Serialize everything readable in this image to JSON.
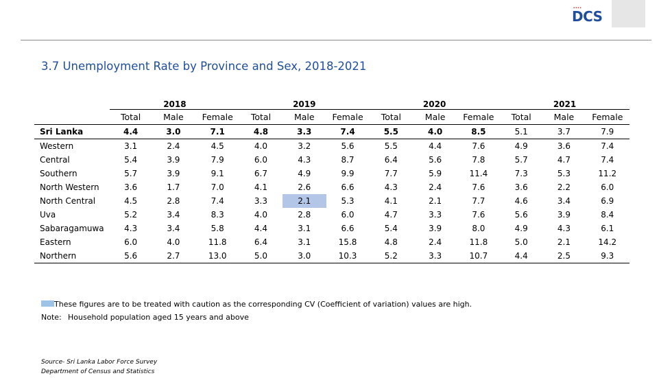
{
  "logo": {
    "text": "DCS",
    "dots": "▪▪▪▪"
  },
  "title": "3.7  Unemployment Rate by Province and Sex, 2018-2021",
  "table": {
    "years": [
      "2018",
      "2019",
      "2020",
      "2021"
    ],
    "subheaders": [
      "Total",
      "Male",
      "Female",
      "Total",
      "Male",
      "Female",
      "Total",
      "Male",
      "Female",
      "Total",
      "Male",
      "Female"
    ],
    "rows": [
      {
        "label": "Sri Lanka",
        "values": [
          "4.4",
          "3.0",
          "7.1",
          "4.8",
          "3.3",
          "7.4",
          "5.5",
          "4.0",
          "8.5",
          "5.1",
          "3.7",
          "7.9"
        ]
      },
      {
        "label": "Western",
        "values": [
          "3.1",
          "2.4",
          "4.5",
          "4.0",
          "3.2",
          "5.6",
          "5.5",
          "4.4",
          "7.6",
          "4.9",
          "3.6",
          "7.4"
        ]
      },
      {
        "label": "Central",
        "values": [
          "5.4",
          "3.9",
          "7.9",
          "6.0",
          "4.3",
          "8.7",
          "6.4",
          "5.6",
          "7.8",
          "5.7",
          "4.7",
          "7.4"
        ]
      },
      {
        "label": "Southern",
        "values": [
          "5.7",
          "3.9",
          "9.1",
          "6.7",
          "4.9",
          "9.9",
          "7.7",
          "5.9",
          "11.4",
          "7.3",
          "5.3",
          "11.2"
        ]
      },
      {
        "label": "North Western",
        "values": [
          "3.6",
          "1.7",
          "7.0",
          "4.1",
          "2.6",
          "6.6",
          "4.3",
          "2.4",
          "7.6",
          "3.6",
          "2.2",
          "6.0"
        ]
      },
      {
        "label": "North Central",
        "values": [
          "4.5",
          "2.8",
          "7.4",
          "3.3",
          "2.1",
          "5.3",
          "4.1",
          "2.1",
          "7.7",
          "4.6",
          "3.4",
          "6.9"
        ]
      },
      {
        "label": "Uva",
        "values": [
          "5.2",
          "3.4",
          "8.3",
          "4.0",
          "2.8",
          "6.0",
          "4.7",
          "3.3",
          "7.6",
          "5.6",
          "3.9",
          "8.4"
        ]
      },
      {
        "label": "Sabaragamuwa",
        "values": [
          "4.3",
          "3.4",
          "5.8",
          "4.4",
          "3.1",
          "6.6",
          "5.4",
          "3.9",
          "8.0",
          "4.9",
          "4.3",
          "6.1"
        ]
      },
      {
        "label": "Eastern",
        "values": [
          "6.0",
          "4.0",
          "11.8",
          "6.4",
          "3.1",
          "15.8",
          "4.8",
          "2.4",
          "11.8",
          "5.0",
          "2.1",
          "14.2"
        ]
      },
      {
        "label": "Northern",
        "values": [
          "5.6",
          "2.7",
          "13.0",
          "5.0",
          "3.0",
          "10.3",
          "5.2",
          "3.3",
          "10.7",
          "4.4",
          "2.5",
          "9.3"
        ]
      }
    ]
  },
  "legend": {
    "text": "These figures are to be treated with caution as the corresponding CV (Coefficient of variation) values are high.",
    "swatch_color": "#9dc3e6"
  },
  "note": {
    "label": "Note:",
    "text": "Household population aged 15 years and above"
  },
  "source": {
    "line1": "Source- Sri Lanka Labor Force Survey",
    "line2": "Department of Census and Statistics"
  }
}
